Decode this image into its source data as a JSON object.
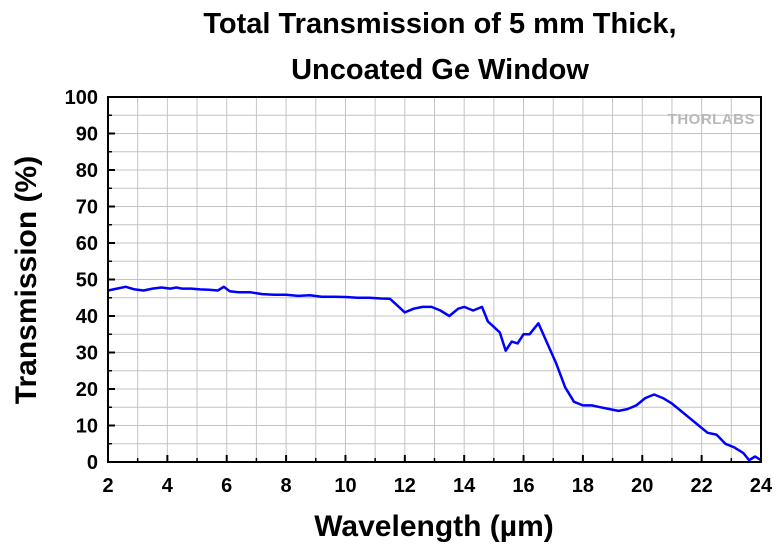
{
  "chart_data": {
    "type": "line",
    "title": [
      "Total Transmission of 5 mm Thick,",
      "Uncoated Ge Window"
    ],
    "xlabel": "Wavelength (µm)",
    "ylabel": "Transmission (%)",
    "xlim": [
      2,
      24
    ],
    "ylim": [
      0,
      100
    ],
    "x_ticks": [
      2,
      4,
      6,
      8,
      10,
      12,
      14,
      16,
      18,
      20,
      22,
      24
    ],
    "y_ticks": [
      0,
      10,
      20,
      30,
      40,
      50,
      60,
      70,
      80,
      90,
      100
    ],
    "grid": true,
    "logo": "THORLABS",
    "line_color": "#0000ff",
    "series": [
      {
        "x": [
          2.0,
          2.3,
          2.6,
          2.9,
          3.2,
          3.5,
          3.8,
          4.1,
          4.3,
          4.5,
          4.8,
          5.1,
          5.4,
          5.7,
          5.9,
          6.1,
          6.4,
          6.8,
          7.2,
          7.6,
          8.0,
          8.4,
          8.8,
          9.2,
          9.6,
          10.0,
          10.4,
          10.8,
          11.2,
          11.5,
          11.8,
          12.0,
          12.3,
          12.6,
          12.9,
          13.2,
          13.5,
          13.8,
          14.0,
          14.3,
          14.6,
          14.8,
          15.0,
          15.2,
          15.4,
          15.6,
          15.8,
          16.0,
          16.2,
          16.5,
          16.8,
          17.1,
          17.4,
          17.7,
          18.0,
          18.3,
          18.6,
          18.9,
          19.2,
          19.5,
          19.8,
          20.1,
          20.4,
          20.7,
          21.0,
          21.3,
          21.6,
          21.9,
          22.2,
          22.5,
          22.8,
          23.1,
          23.4,
          23.6,
          23.8,
          24.0
        ],
        "y": [
          47.0,
          47.5,
          48.0,
          47.3,
          47.0,
          47.5,
          47.8,
          47.5,
          47.8,
          47.5,
          47.5,
          47.3,
          47.2,
          47.0,
          48.0,
          46.8,
          46.5,
          46.5,
          46.0,
          45.8,
          45.8,
          45.5,
          45.7,
          45.3,
          45.3,
          45.2,
          45.0,
          45.0,
          44.8,
          44.7,
          42.5,
          41.0,
          42.0,
          42.5,
          42.5,
          41.5,
          40.0,
          42.0,
          42.5,
          41.5,
          42.5,
          38.5,
          37.0,
          35.5,
          30.5,
          33.0,
          32.5,
          35.0,
          35.0,
          38.0,
          32.5,
          27.0,
          20.5,
          16.5,
          15.5,
          15.5,
          15.0,
          14.5,
          14.0,
          14.5,
          15.5,
          17.5,
          18.5,
          17.5,
          16.0,
          14.0,
          12.0,
          10.0,
          8.0,
          7.5,
          5.0,
          4.0,
          2.5,
          0.5,
          1.5,
          0.5
        ]
      }
    ]
  }
}
